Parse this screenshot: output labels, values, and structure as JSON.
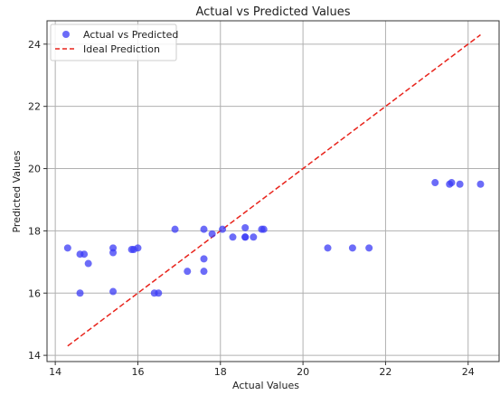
{
  "chart_data": {
    "type": "scatter",
    "title": "Actual vs Predicted Values",
    "xlabel": "Actual Values",
    "ylabel": "Predicted Values",
    "xlim": [
      13.8,
      24.75
    ],
    "ylim": [
      13.8,
      24.75
    ],
    "xticks": [
      14,
      16,
      18,
      20,
      22,
      24
    ],
    "yticks": [
      14,
      16,
      18,
      20,
      22,
      24
    ],
    "grid": true,
    "legend_position": "top-left",
    "series": [
      {
        "name": "Actual vs Predicted",
        "kind": "scatter",
        "color": "#3b3bf5",
        "points": [
          {
            "x": 14.3,
            "y": 17.45
          },
          {
            "x": 14.6,
            "y": 17.25
          },
          {
            "x": 14.7,
            "y": 17.25
          },
          {
            "x": 14.8,
            "y": 16.95
          },
          {
            "x": 14.6,
            "y": 16.0
          },
          {
            "x": 15.4,
            "y": 17.45
          },
          {
            "x": 15.4,
            "y": 17.3
          },
          {
            "x": 15.4,
            "y": 16.05
          },
          {
            "x": 15.85,
            "y": 17.4
          },
          {
            "x": 15.9,
            "y": 17.4
          },
          {
            "x": 16.0,
            "y": 17.45
          },
          {
            "x": 16.4,
            "y": 16.0
          },
          {
            "x": 16.5,
            "y": 16.0
          },
          {
            "x": 16.9,
            "y": 18.05
          },
          {
            "x": 17.2,
            "y": 16.7
          },
          {
            "x": 17.6,
            "y": 16.7
          },
          {
            "x": 17.6,
            "y": 17.1
          },
          {
            "x": 17.6,
            "y": 18.05
          },
          {
            "x": 17.8,
            "y": 17.9
          },
          {
            "x": 18.05,
            "y": 18.05
          },
          {
            "x": 18.3,
            "y": 17.8
          },
          {
            "x": 18.6,
            "y": 17.8
          },
          {
            "x": 18.6,
            "y": 17.8
          },
          {
            "x": 18.6,
            "y": 18.1
          },
          {
            "x": 18.8,
            "y": 17.8
          },
          {
            "x": 19.0,
            "y": 18.05
          },
          {
            "x": 19.05,
            "y": 18.05
          },
          {
            "x": 20.6,
            "y": 17.45
          },
          {
            "x": 21.2,
            "y": 17.45
          },
          {
            "x": 21.6,
            "y": 17.45
          },
          {
            "x": 23.2,
            "y": 19.55
          },
          {
            "x": 23.55,
            "y": 19.5
          },
          {
            "x": 23.6,
            "y": 19.55
          },
          {
            "x": 23.8,
            "y": 19.5
          },
          {
            "x": 24.3,
            "y": 19.5
          }
        ]
      },
      {
        "name": "Ideal Prediction",
        "kind": "line",
        "color": "#e8241c",
        "dash": "dashed",
        "points": [
          {
            "x": 14.3,
            "y": 14.3
          },
          {
            "x": 24.3,
            "y": 24.3
          }
        ]
      }
    ]
  }
}
